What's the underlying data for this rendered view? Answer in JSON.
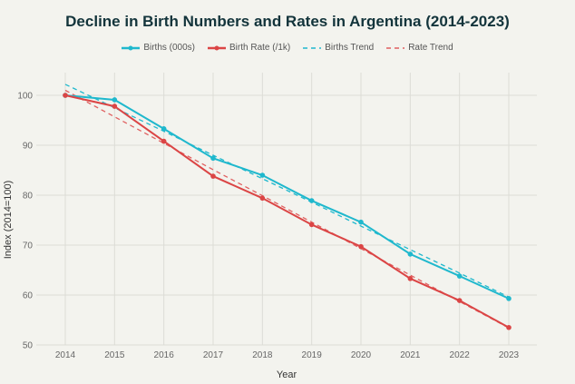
{
  "chart_data": {
    "type": "line",
    "title": "Decline in Birth Numbers and Rates in Argentina (2014-2023)",
    "xlabel": "Year",
    "ylabel": "Index (2014=100)",
    "ylim": [
      50,
      102.5
    ],
    "yticks": [
      50,
      60,
      70,
      80,
      90,
      100
    ],
    "x": [
      2014,
      2015,
      2016,
      2017,
      2018,
      2019,
      2020,
      2021,
      2022,
      2023
    ],
    "grid": true,
    "legend_position": "top-center",
    "series": [
      {
        "name": "Births (000s)",
        "color": "#1fb8cd",
        "style": "solid",
        "markers": true,
        "values": [
          100,
          99.1,
          93.3,
          87.4,
          84.0,
          78.9,
          74.6,
          68.2,
          63.8,
          59.3
        ]
      },
      {
        "name": "Birth Rate (/1k)",
        "color": "#db4545",
        "style": "solid",
        "markers": true,
        "values": [
          100,
          97.8,
          90.8,
          83.8,
          79.4,
          74.1,
          69.7,
          63.3,
          58.9,
          53.5
        ]
      },
      {
        "name": "Births Trend",
        "color": "#1fb8cd",
        "style": "dashed",
        "markers": false,
        "values": [
          102.2,
          97.5,
          92.8,
          88.0,
          83.3,
          78.6,
          73.8,
          69.1,
          64.4,
          59.6
        ]
      },
      {
        "name": "Rate Trend",
        "color": "#e06060",
        "style": "dashed",
        "markers": false,
        "values": [
          101.0,
          95.7,
          90.4,
          85.1,
          79.9,
          74.6,
          69.3,
          64.0,
          58.7,
          53.4
        ]
      }
    ]
  }
}
